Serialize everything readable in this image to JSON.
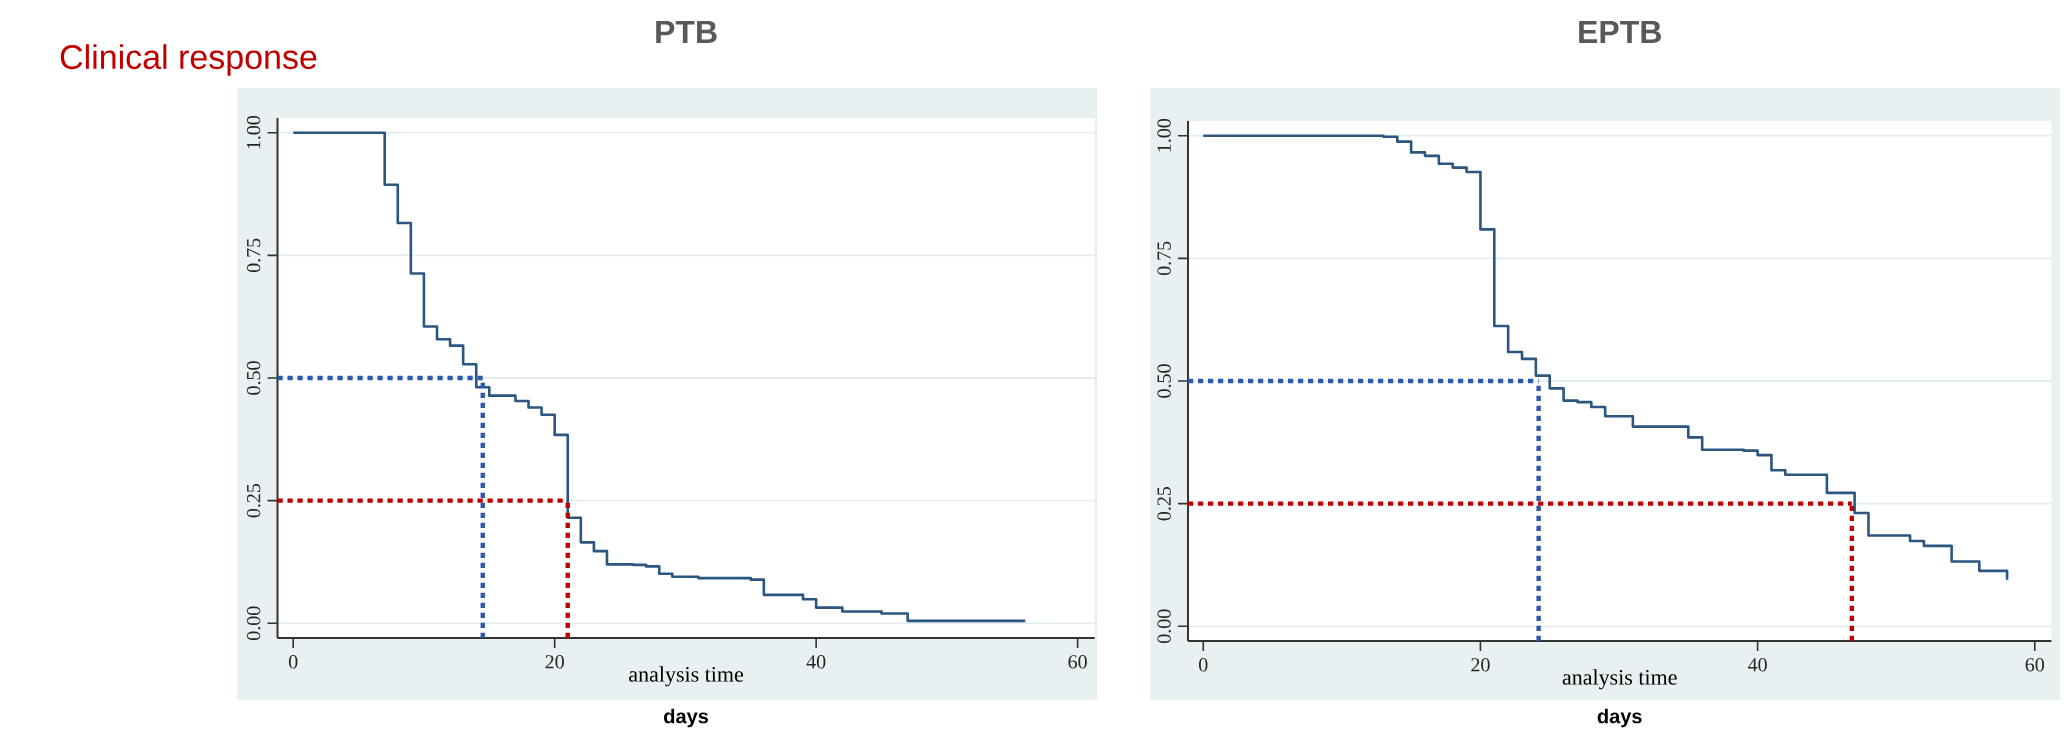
{
  "chart_data": [
    {
      "type": "step",
      "title": "PTB",
      "xlabel": "analysis time",
      "annotations": [
        "Clinical response",
        "days"
      ],
      "x": [
        0,
        7,
        8,
        9,
        10,
        11,
        12,
        13,
        14,
        15,
        17,
        18,
        19,
        20,
        21,
        22,
        23,
        24,
        26,
        27,
        28,
        29,
        31,
        35,
        36,
        39,
        40,
        42,
        45,
        47,
        56
      ],
      "series": [
        {
          "color": "#2b5680",
          "values": [
            1,
            0.894,
            0.816,
            0.713,
            0.605,
            0.579,
            0.566,
            0.528,
            0.481,
            0.464,
            0.453,
            0.44,
            0.425,
            0.384,
            0.215,
            0.165,
            0.147,
            0.12,
            0.119,
            0.116,
            0.101,
            0.095,
            0.092,
            0.089,
            0.058,
            0.049,
            0.032,
            0.024,
            0.02,
            0.005,
            0.005
          ]
        }
      ],
      "xlim": [
        -1.2,
        61.3
      ],
      "ylim": [
        -0.03,
        1.03
      ],
      "xticks": [
        0,
        20,
        40,
        60
      ],
      "yticks": [
        {
          "value": 0,
          "label": "0.00"
        },
        {
          "value": 0.25,
          "label": "0.25"
        },
        {
          "value": 0.5,
          "label": "0.50"
        },
        {
          "value": 0.75,
          "label": "0.75"
        },
        {
          "value": 1,
          "label": "1.00"
        }
      ],
      "grid": "y",
      "ref_lines": [
        {
          "axis": "y",
          "value": 0.5,
          "color": "#2e58a8",
          "line_style": "dotted"
        },
        {
          "axis": "x",
          "value": 14.5,
          "color": "#2e58a8",
          "line_style": "dotted"
        },
        {
          "axis": "y",
          "value": 0.25,
          "color": "#c00000",
          "line_style": "dotted"
        },
        {
          "axis": "x",
          "value": 21,
          "color": "#c00000",
          "line_style": "dotted"
        }
      ]
    },
    {
      "type": "step",
      "title": "EPTB",
      "xlabel": "analysis time",
      "annotations": [
        "days"
      ],
      "x": [
        0,
        13,
        14,
        15,
        16,
        17,
        18,
        19,
        20,
        21,
        22,
        23,
        24,
        25,
        26,
        27,
        28,
        29,
        31,
        35,
        36,
        39,
        40,
        41,
        42,
        45,
        47,
        48,
        51,
        52,
        54,
        56,
        58
      ],
      "series": [
        {
          "color": "#2b5680",
          "values": [
            1,
            0.998,
            0.988,
            0.966,
            0.959,
            0.943,
            0.935,
            0.926,
            0.809,
            0.612,
            0.559,
            0.545,
            0.511,
            0.485,
            0.46,
            0.457,
            0.447,
            0.428,
            0.407,
            0.385,
            0.36,
            0.358,
            0.349,
            0.318,
            0.309,
            0.272,
            0.231,
            0.185,
            0.174,
            0.164,
            0.132,
            0.113,
            0.095
          ]
        }
      ],
      "xlim": [
        -1.1,
        61.2
      ],
      "ylim": [
        -0.03,
        1.03
      ],
      "xticks": [
        0,
        20,
        40,
        60
      ],
      "yticks": [
        {
          "value": 0,
          "label": "0.00"
        },
        {
          "value": 0.25,
          "label": "0.25"
        },
        {
          "value": 0.5,
          "label": "0.50"
        },
        {
          "value": 0.75,
          "label": "0.75"
        },
        {
          "value": 1,
          "label": "1.00"
        }
      ],
      "grid": "y",
      "ref_lines": [
        {
          "axis": "y",
          "value": 0.5,
          "color": "#2e58a8",
          "line_style": "dotted"
        },
        {
          "axis": "x",
          "value": 24.2,
          "color": "#2e58a8",
          "line_style": "dotted"
        },
        {
          "axis": "y",
          "value": 0.25,
          "color": "#c00000",
          "line_style": "dotted"
        },
        {
          "axis": "x",
          "value": 46.8,
          "color": "#c00000",
          "line_style": "dotted"
        }
      ]
    }
  ]
}
